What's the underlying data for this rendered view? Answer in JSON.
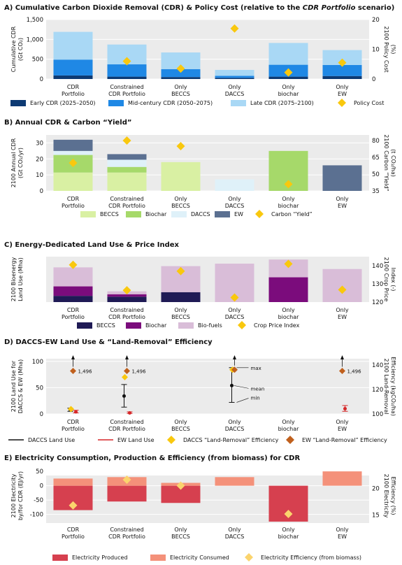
{
  "categories": [
    [
      "CDR",
      "Portfolio"
    ],
    [
      "Constrained",
      "CDR Portfolio"
    ],
    [
      "Only",
      "BECCS"
    ],
    [
      "Only",
      "DACCS"
    ],
    [
      "Only",
      "biochar"
    ],
    [
      "Only",
      "EW"
    ]
  ],
  "chart_data": [
    {
      "id": "A",
      "type": "bar",
      "title_prefix": "A) Cumulative Carbon Dioxide Removal (CDR) & Policy Cost (relative to the ",
      "title_italic": "CDR Portfolio",
      "title_suffix": " scenario)",
      "ylabel": [
        "Cumulative CDR",
        "(Gt CO₂)"
      ],
      "y2label": [
        "2100 Policy Cost",
        "(%)"
      ],
      "ylim": [
        0,
        1500
      ],
      "yticks": [
        0,
        500,
        1000,
        1500
      ],
      "ytick_labels": [
        "0",
        "500",
        "1,000",
        "1,500"
      ],
      "y2lim": [
        0,
        20
      ],
      "y2ticks": [
        0,
        10,
        20
      ],
      "series": [
        {
          "name": "Early CDR (2025–2050)",
          "color": "#0d3a73",
          "values": [
            90,
            60,
            50,
            30,
            60,
            75
          ]
        },
        {
          "name": "Mid-century CDR (2050–2075)",
          "color": "#1f88e5",
          "values": [
            400,
            310,
            200,
            50,
            300,
            280
          ]
        },
        {
          "name": "Late CDR (2075–2100)",
          "color": "#a9d8f5",
          "values": [
            700,
            500,
            420,
            150,
            550,
            375
          ]
        }
      ],
      "markers": {
        "name": "Policy Cost",
        "color": "#f9c80e",
        "values": [
          null,
          6,
          3.5,
          17,
          2.2,
          5.5
        ]
      }
    },
    {
      "id": "B",
      "type": "bar",
      "title": "B) Annual CDR & Carbon “Yield”",
      "ylabel": [
        "2100 Annual CDR",
        "(Gt CO₂/yr)"
      ],
      "y2label": [
        "2100 Carbon “Yield”",
        "(t CO₂/ha)"
      ],
      "ylim": [
        0,
        35
      ],
      "yticks": [
        0,
        10,
        20,
        30
      ],
      "y2lim": [
        35,
        85
      ],
      "y2ticks": [
        35,
        50,
        65,
        80
      ],
      "series": [
        {
          "name": "BECCS",
          "color": "#d9f0a3",
          "values": [
            11.5,
            11.5,
            18,
            0,
            0,
            0
          ]
        },
        {
          "name": "Biochar",
          "color": "#a6d96a",
          "values": [
            11,
            3.5,
            0,
            0,
            25,
            0
          ]
        },
        {
          "name": "DACCS",
          "color": "#dff1f9",
          "values": [
            2.5,
            4.5,
            0,
            7.2,
            0,
            0
          ]
        },
        {
          "name": "EW",
          "color": "#5b7091",
          "values": [
            7,
            3.5,
            0,
            0,
            0,
            16
          ]
        }
      ],
      "markers": {
        "name": "Carbon “Yield”",
        "color": "#f9c80e",
        "values": [
          60,
          80,
          75,
          null,
          41,
          null
        ]
      }
    },
    {
      "id": "C",
      "type": "bar",
      "title": "C) Energy-Dedicated Land Use & Price Index",
      "ylabel": [
        "2100 Bioenergy",
        "Land Use (Mha)"
      ],
      "y2label": [
        "2100 Crop Price",
        "Index (-)"
      ],
      "ylim": [
        0,
        1100
      ],
      "yticks": [],
      "y2lim": [
        120,
        145
      ],
      "y2ticks": [
        120,
        130,
        140
      ],
      "series": [
        {
          "name": "BECCS",
          "color": "#1f1a55",
          "values": [
            150,
            130,
            240,
            0,
            0,
            0
          ]
        },
        {
          "name": "Biochar",
          "color": "#7b0c7c",
          "values": [
            230,
            60,
            0,
            0,
            600,
            0
          ]
        },
        {
          "name": "Bio-fuels",
          "color": "#d9bdd8",
          "values": [
            460,
            70,
            630,
            930,
            430,
            800
          ]
        }
      ],
      "markers": {
        "name": "Crop Price Index",
        "color": "#f9c80e",
        "values": [
          140.5,
          126.5,
          137,
          122.5,
          141,
          126.8
        ]
      }
    },
    {
      "id": "D",
      "type": "scatter",
      "title": "D) DACCS-EW Land Use & “Land-Removal” Efficiency",
      "ylabel": [
        "2100 Land Use for",
        "DACCS & EW (Mha)"
      ],
      "y2label": [
        "2100 Land-Removal",
        "Efficiency (kgCO₂/ha)"
      ],
      "ylim": [
        0,
        105
      ],
      "yticks": [
        0,
        50,
        100
      ],
      "y2lim": [
        100,
        145
      ],
      "y2ticks": [
        100,
        120,
        140
      ],
      "daccs_land": {
        "name": "DACCS Land Use",
        "color": "#111111",
        "values": [
          {
            "mean": 8,
            "min": 5,
            "max": 11
          },
          {
            "mean": 34,
            "min": 13,
            "max": 56
          },
          null,
          {
            "mean": 54,
            "min": 22,
            "max": 88
          },
          null,
          null
        ]
      },
      "ew_land": {
        "name": "EW Land Use",
        "color": "#d62728",
        "values": [
          {
            "mean": 4,
            "min": 2,
            "max": 7
          },
          {
            "mean": 2,
            "min": 1,
            "max": 4
          },
          null,
          null,
          null,
          {
            "mean": 10,
            "min": 5,
            "max": 16
          }
        ]
      },
      "daccs_eff": {
        "name": "DACCS “Land-Removal” Efficiency",
        "color": "#f9c80e",
        "values": [
          104,
          130,
          null,
          136,
          null,
          null
        ]
      },
      "ew_eff": {
        "name": "EW “Land-Removal” Efficiency",
        "color": "#c0601d",
        "values": [
          1496,
          1496,
          null,
          1496,
          null,
          1496
        ]
      },
      "ew_eff_display": [
        135,
        135,
        null,
        136,
        null,
        135
      ],
      "ew_eff_label": "1,496",
      "annotations": {
        "max": "max",
        "mean": "mean",
        "min": "min"
      }
    },
    {
      "id": "E",
      "type": "bar",
      "title": "E) Electricity Consumption, Production & Efficiency (from biomass) for CDR",
      "ylabel": [
        "2100 Electricity",
        "by/for CDR (EJ/yr)"
      ],
      "y2label": [
        "2100 Electricity",
        "Efficiency (%)"
      ],
      "ylim": [
        -130,
        60
      ],
      "yticks": [
        -100,
        -50,
        0,
        50
      ],
      "y2lim": [
        13.5,
        23.7
      ],
      "y2ticks": [
        15,
        20
      ],
      "series": [
        {
          "name": "Electricity Produced",
          "color": "#d6404f",
          "values": [
            -85,
            -55,
            -60,
            0,
            -125,
            0
          ]
        },
        {
          "name": "Electricity Consumed",
          "color": "#f4917a",
          "values": [
            25,
            30,
            10,
            30,
            0,
            50
          ]
        }
      ],
      "markers": {
        "name": "Electricity Efficiency (from biomass)",
        "color": "#fbd46d",
        "values": [
          16.8,
          21.6,
          20.5,
          null,
          15.2,
          null
        ]
      }
    }
  ]
}
